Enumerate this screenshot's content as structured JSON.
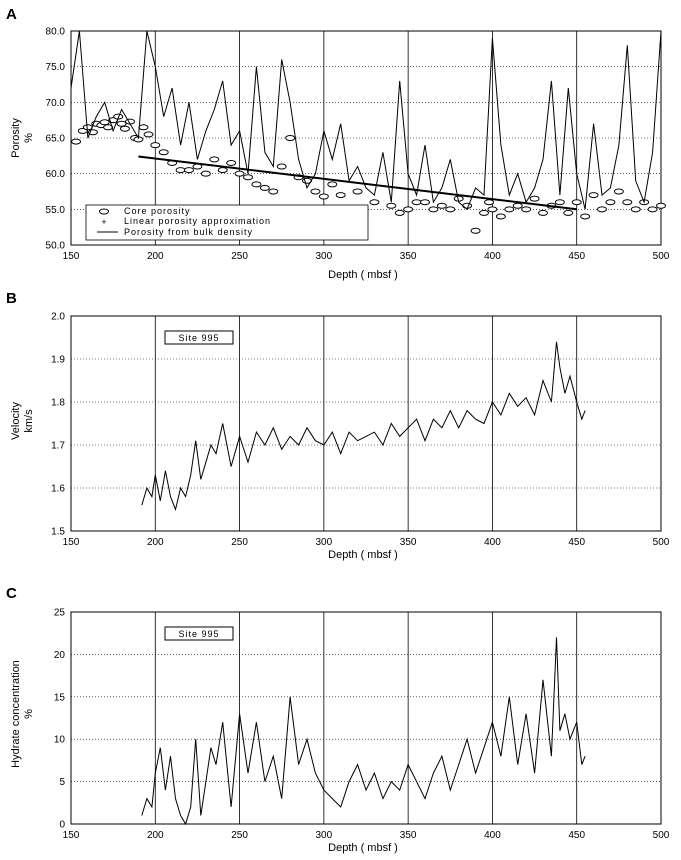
{
  "figure": {
    "panels": [
      {
        "letter": "A",
        "xlabel": "Depth ( mbsf )",
        "ylabel_lines": [
          "Porosity",
          "%"
        ],
        "site_label": ""
      },
      {
        "letter": "B",
        "xlabel": "Depth ( mbsf )",
        "ylabel_lines": [
          "Velocity",
          "km/s"
        ],
        "site_label": "Site 995"
      },
      {
        "letter": "C",
        "xlabel": "Depth ( mbsf )",
        "ylabel_lines": [
          "Hydrate concentration",
          "%"
        ],
        "site_label": "Site 995"
      }
    ],
    "legend_A": [
      {
        "label": "Core porosity",
        "symbol": "open-ellipse"
      },
      {
        "label": "Linear porosity approximation",
        "symbol": "plus"
      },
      {
        "label": "Porosity from bulk density",
        "symbol": "line"
      }
    ]
  },
  "chart_data": [
    {
      "type": "line",
      "panel": "A",
      "xlabel": "Depth ( mbsf )",
      "ylabel": "Porosity %",
      "xlim": [
        150,
        500
      ],
      "ylim": [
        50,
        80
      ],
      "xticks": [
        150,
        200,
        250,
        300,
        350,
        400,
        450,
        500
      ],
      "yticks": [
        50,
        55,
        60,
        65,
        70,
        75,
        80
      ],
      "grid": true,
      "legend_position": "bottom-left",
      "series": [
        {
          "name": "Core porosity",
          "kind": "scatter",
          "x": [
            153,
            157,
            160,
            163,
            165,
            168,
            170,
            172,
            175,
            178,
            180,
            182,
            185,
            188,
            190,
            193,
            196,
            200,
            205,
            210,
            215,
            220,
            225,
            230,
            235,
            240,
            245,
            250,
            255,
            260,
            265,
            270,
            275,
            280,
            285,
            290,
            295,
            300,
            305,
            310,
            320,
            330,
            340,
            345,
            350,
            355,
            360,
            365,
            370,
            375,
            380,
            385,
            390,
            395,
            398,
            400,
            405,
            410,
            415,
            420,
            425,
            430,
            435,
            440,
            445,
            450,
            455,
            460,
            465,
            470,
            475,
            480,
            485,
            490,
            495,
            500
          ],
          "y": [
            64.5,
            66.0,
            66.5,
            65.8,
            67.0,
            66.8,
            67.2,
            66.5,
            67.5,
            68.0,
            67.0,
            66.3,
            67.3,
            65.0,
            64.8,
            66.5,
            65.5,
            64.0,
            63.0,
            61.5,
            60.5,
            60.5,
            61.0,
            60.0,
            62.0,
            60.5,
            61.5,
            60.0,
            59.5,
            58.5,
            58.0,
            57.5,
            61.0,
            65.0,
            59.5,
            59.0,
            57.5,
            56.8,
            58.5,
            57.0,
            57.5,
            56.0,
            55.5,
            54.5,
            55.0,
            56.0,
            56.0,
            55.0,
            55.5,
            55.0,
            56.5,
            55.5,
            52.0,
            54.5,
            56.0,
            55.0,
            54.0,
            55.0,
            55.5,
            55.0,
            56.5,
            54.5,
            55.5,
            56.0,
            54.5,
            56.0,
            54.0,
            57.0,
            55.0,
            56.0,
            57.5,
            56.0,
            55.0,
            56.0,
            55.0,
            55.5
          ]
        },
        {
          "name": "Linear porosity approximation",
          "kind": "line",
          "x": [
            190,
            450
          ],
          "y": [
            62.4,
            55.0
          ]
        },
        {
          "name": "Porosity from bulk density",
          "kind": "line",
          "x": [
            150,
            155,
            160,
            165,
            170,
            175,
            180,
            185,
            190,
            195,
            200,
            205,
            210,
            215,
            220,
            225,
            230,
            235,
            240,
            245,
            250,
            255,
            260,
            265,
            270,
            275,
            280,
            285,
            290,
            295,
            300,
            305,
            310,
            315,
            320,
            325,
            330,
            335,
            340,
            345,
            350,
            355,
            360,
            365,
            370,
            375,
            380,
            385,
            390,
            395,
            400,
            405,
            410,
            415,
            420,
            425,
            430,
            435,
            440,
            445,
            450,
            455,
            460,
            465,
            470,
            475,
            480,
            485,
            490,
            495,
            500
          ],
          "y": [
            72,
            80,
            65,
            68,
            70,
            66,
            69,
            67,
            65,
            80,
            75,
            68,
            72,
            64,
            70,
            62,
            66,
            69,
            73,
            64,
            66,
            60,
            75,
            63,
            61,
            76,
            70,
            62,
            58,
            60,
            66,
            62,
            67,
            59,
            61,
            58,
            57,
            63,
            56,
            73,
            60,
            57,
            64,
            56,
            58,
            62,
            56,
            55,
            58,
            57,
            79,
            64,
            57,
            60,
            56,
            58,
            62,
            73,
            57,
            72,
            60,
            55,
            67,
            57,
            58,
            64,
            78,
            59,
            56,
            63,
            80
          ]
        }
      ]
    },
    {
      "type": "line",
      "panel": "B",
      "xlabel": "Depth ( mbsf )",
      "ylabel": "Velocity km/s",
      "xlim": [
        150,
        500
      ],
      "ylim": [
        1.5,
        2.0
      ],
      "xticks": [
        150,
        200,
        250,
        300,
        350,
        400,
        450,
        500
      ],
      "yticks": [
        1.5,
        1.6,
        1.7,
        1.8,
        1.9,
        2.0
      ],
      "grid": true,
      "series": [
        {
          "name": "Site 995",
          "x": [
            192,
            195,
            198,
            200,
            203,
            206,
            209,
            212,
            215,
            218,
            221,
            224,
            227,
            230,
            233,
            236,
            240,
            245,
            250,
            255,
            260,
            265,
            270,
            275,
            280,
            285,
            290,
            295,
            300,
            305,
            310,
            315,
            320,
            325,
            330,
            335,
            340,
            345,
            350,
            355,
            360,
            365,
            370,
            375,
            380,
            385,
            390,
            395,
            400,
            405,
            410,
            415,
            420,
            425,
            430,
            435,
            438,
            440,
            443,
            446,
            450,
            453,
            455
          ],
          "y": [
            1.56,
            1.6,
            1.58,
            1.63,
            1.57,
            1.64,
            1.58,
            1.55,
            1.6,
            1.58,
            1.63,
            1.71,
            1.62,
            1.66,
            1.7,
            1.68,
            1.75,
            1.65,
            1.72,
            1.66,
            1.73,
            1.7,
            1.74,
            1.69,
            1.72,
            1.7,
            1.74,
            1.71,
            1.7,
            1.73,
            1.68,
            1.73,
            1.71,
            1.72,
            1.73,
            1.7,
            1.75,
            1.72,
            1.74,
            1.76,
            1.71,
            1.76,
            1.74,
            1.78,
            1.74,
            1.78,
            1.76,
            1.75,
            1.8,
            1.77,
            1.82,
            1.79,
            1.81,
            1.77,
            1.85,
            1.8,
            1.94,
            1.88,
            1.82,
            1.86,
            1.8,
            1.76,
            1.78
          ]
        }
      ]
    },
    {
      "type": "line",
      "panel": "C",
      "xlabel": "Depth ( mbsf )",
      "ylabel": "Hydrate concentration %",
      "xlim": [
        150,
        500
      ],
      "ylim": [
        0,
        25
      ],
      "xticks": [
        150,
        200,
        250,
        300,
        350,
        400,
        450,
        500
      ],
      "yticks": [
        0,
        5,
        10,
        15,
        20,
        25
      ],
      "grid": true,
      "series": [
        {
          "name": "Site 995",
          "x": [
            192,
            195,
            198,
            200,
            203,
            206,
            209,
            212,
            215,
            218,
            221,
            224,
            227,
            230,
            233,
            236,
            240,
            245,
            250,
            255,
            260,
            265,
            270,
            275,
            280,
            285,
            290,
            295,
            300,
            305,
            310,
            315,
            320,
            325,
            330,
            335,
            340,
            345,
            350,
            355,
            360,
            365,
            370,
            375,
            380,
            385,
            390,
            395,
            400,
            405,
            410,
            415,
            420,
            425,
            430,
            435,
            438,
            440,
            443,
            446,
            450,
            453,
            455
          ],
          "y": [
            1,
            3,
            2,
            6,
            9,
            4,
            8,
            3,
            1,
            0,
            2,
            10,
            1,
            5,
            9,
            7,
            12,
            2,
            13,
            6,
            12,
            5,
            8,
            3,
            15,
            7,
            10,
            6,
            4,
            3,
            2,
            5,
            7,
            4,
            6,
            3,
            5,
            4,
            7,
            5,
            3,
            6,
            8,
            4,
            7,
            10,
            6,
            9,
            12,
            8,
            15,
            7,
            13,
            6,
            17,
            8,
            22,
            11,
            13,
            10,
            12,
            7,
            8
          ]
        }
      ]
    }
  ]
}
